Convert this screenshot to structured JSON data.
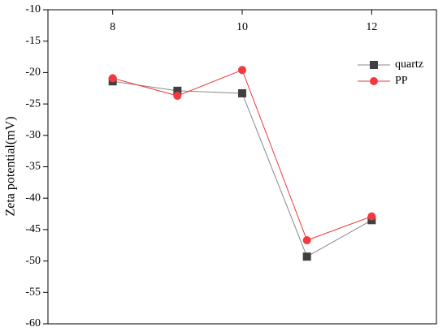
{
  "chart_data": {
    "type": "line",
    "y_label": "Zeta potential(mV)",
    "x": [
      8,
      9,
      10,
      11,
      12
    ],
    "xlim": [
      7,
      13
    ],
    "xticks": [
      8,
      10,
      12
    ],
    "ylim": [
      -60,
      -10
    ],
    "yticks": [
      -60,
      -55,
      -50,
      -45,
      -40,
      -35,
      -30,
      -25,
      -20,
      -15,
      -10
    ],
    "legend": "upper right",
    "series": [
      {
        "name": "quartz",
        "color": "#404040",
        "line_color": "#888888",
        "marker": "square",
        "values": [
          -21.4,
          -22.9,
          -23.3,
          -49.3,
          -43.5
        ]
      },
      {
        "name": "PP",
        "color": "#f03a3f",
        "line_color": "#f03a3f",
        "marker": "circle",
        "values": [
          -20.9,
          -23.7,
          -19.6,
          -46.7,
          -42.9
        ]
      }
    ]
  }
}
